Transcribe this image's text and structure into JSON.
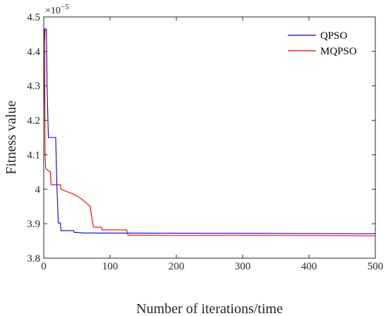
{
  "chart_data": {
    "type": "line",
    "xlabel": "Number of iterations/time",
    "ylabel": "Fitness value",
    "y_multiplier_label": "×10",
    "y_multiplier_exp": "−5",
    "xlim": [
      0,
      500
    ],
    "ylim": [
      3.8,
      4.5
    ],
    "x_ticks": [
      "0",
      "100",
      "200",
      "300",
      "400",
      "500"
    ],
    "y_ticks": [
      "3.8",
      "3.9",
      "4",
      "4.1",
      "4.2",
      "4.3",
      "4.4",
      "4.5"
    ],
    "legend_position": "top-right",
    "grid": false,
    "series": [
      {
        "name": "QPSO",
        "color": "#0000c8",
        "points": [
          [
            0,
            4.2
          ],
          [
            1,
            4.42
          ],
          [
            2,
            4.465
          ],
          [
            4,
            4.465
          ],
          [
            5,
            4.3
          ],
          [
            7,
            4.15
          ],
          [
            18,
            4.15
          ],
          [
            20,
            4.0
          ],
          [
            22,
            3.902
          ],
          [
            25,
            3.902
          ],
          [
            26,
            3.88
          ],
          [
            45,
            3.88
          ],
          [
            46,
            3.875
          ],
          [
            60,
            3.873
          ],
          [
            500,
            3.871
          ]
        ]
      },
      {
        "name": "MQPSO",
        "color": "#e60000",
        "points": [
          [
            0,
            4.3
          ],
          [
            1,
            4.465
          ],
          [
            2,
            4.1
          ],
          [
            3,
            4.06
          ],
          [
            6,
            4.055
          ],
          [
            10,
            4.05
          ],
          [
            11,
            4.013
          ],
          [
            25,
            4.013
          ],
          [
            26,
            4.0
          ],
          [
            32,
            3.995
          ],
          [
            39,
            3.99
          ],
          [
            46,
            3.985
          ],
          [
            52,
            3.978
          ],
          [
            58,
            3.97
          ],
          [
            64,
            3.96
          ],
          [
            70,
            3.95
          ],
          [
            73,
            3.91
          ],
          [
            75,
            3.89
          ],
          [
            87,
            3.89
          ],
          [
            88,
            3.882
          ],
          [
            125,
            3.882
          ],
          [
            127,
            3.867
          ],
          [
            190,
            3.866
          ],
          [
            355,
            3.866
          ],
          [
            500,
            3.865
          ]
        ]
      }
    ]
  }
}
